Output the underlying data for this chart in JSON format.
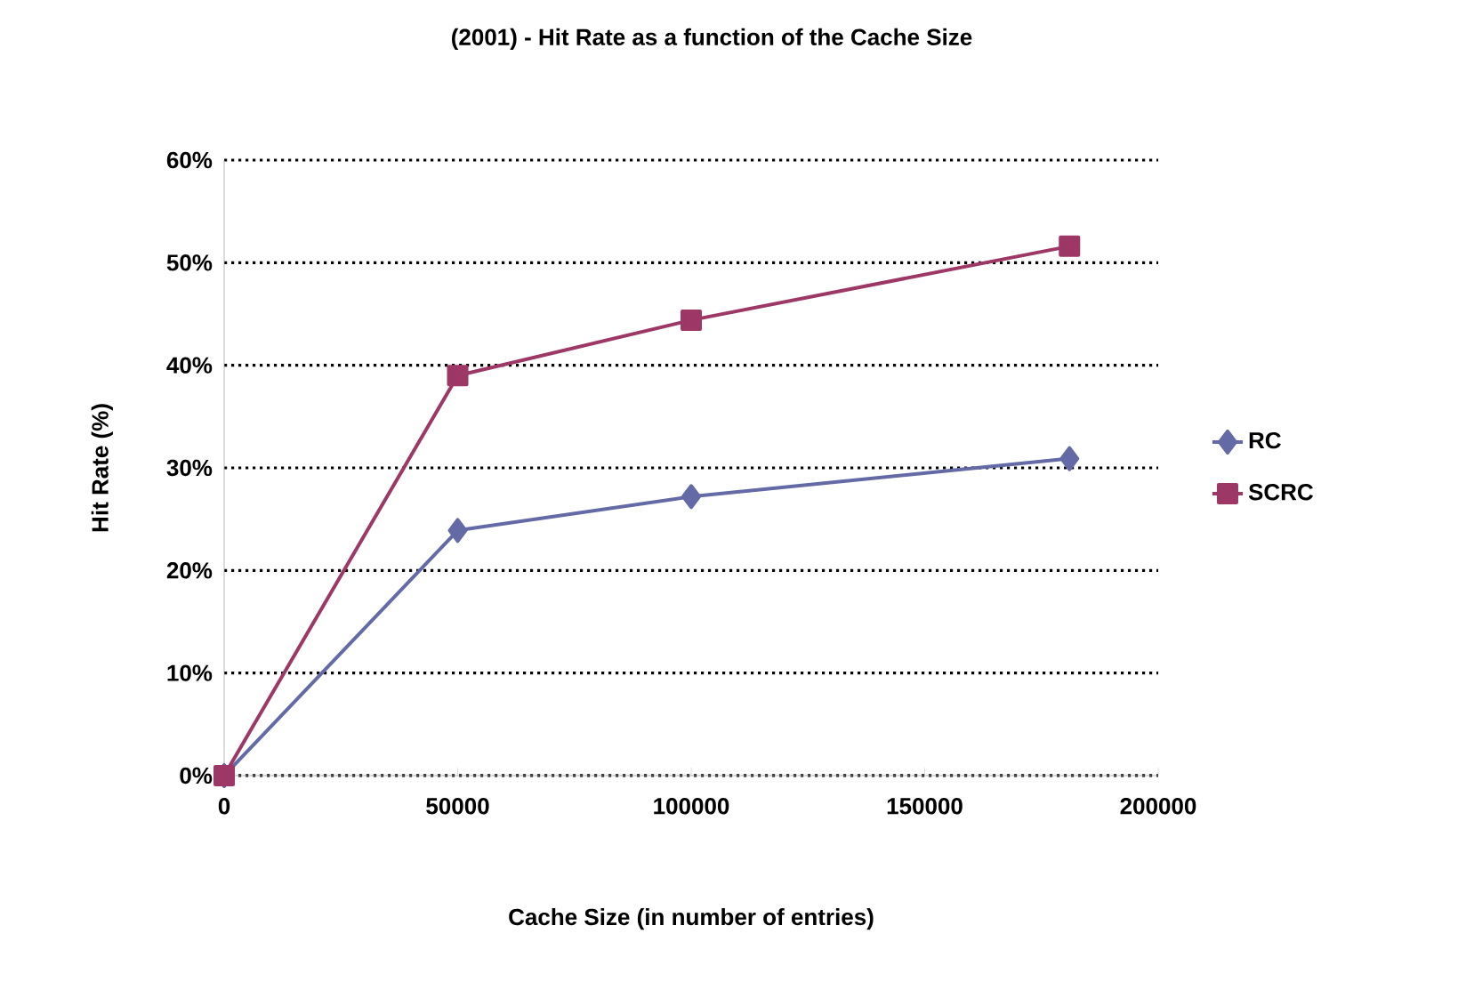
{
  "chart_data": {
    "type": "line",
    "title": "(2001) - Hit Rate as a function of the Cache Size",
    "xlabel": "Cache Size (in number of entries)",
    "ylabel": "Hit Rate (%)",
    "x": [
      0,
      50000,
      100000,
      181000
    ],
    "series": [
      {
        "name": "RC",
        "color": "#646aa6",
        "marker": "diamond",
        "values": [
          0,
          23.9,
          27.2,
          30.9
        ]
      },
      {
        "name": "SCRC",
        "color": "#9c3766",
        "marker": "square",
        "values": [
          0,
          39.0,
          44.4,
          51.6
        ]
      }
    ],
    "xlim": [
      0,
      200000
    ],
    "xticks": [
      0,
      50000,
      100000,
      150000,
      200000
    ],
    "ylim": [
      0,
      60
    ],
    "yticks": [
      {
        "value": 0,
        "label": "0%"
      },
      {
        "value": 10,
        "label": "10%"
      },
      {
        "value": 20,
        "label": "20%"
      },
      {
        "value": 30,
        "label": "30%"
      },
      {
        "value": 40,
        "label": "40%"
      },
      {
        "value": 50,
        "label": "50%"
      },
      {
        "value": 60,
        "label": "60%"
      }
    ],
    "grid": "y",
    "legend": "right",
    "line_style": "solid"
  }
}
